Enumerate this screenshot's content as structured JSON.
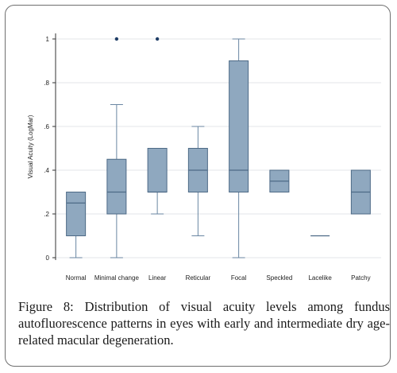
{
  "caption": {
    "label": "Figure 8:",
    "text": "Distribution of visual acuity levels among fundus autofluorescence patterns in eyes with early and intermediate dry age-related macular degeneration."
  },
  "colors": {
    "box_fill": "#8fa8bf",
    "box_stroke": "#4d6a86",
    "whisker": "#6a86a2",
    "outlier": "#1f3d66",
    "gridline": "#e3e6ea",
    "axis": "#333333"
  },
  "chart_data": {
    "type": "box",
    "title": "",
    "xlabel": "",
    "ylabel": "Visual Acuity (LogMar)",
    "ylim": [
      0,
      1
    ],
    "yticks": [
      0,
      0.2,
      0.4,
      0.6,
      0.8,
      1
    ],
    "ytick_labels": [
      "0",
      ".2",
      ".4",
      ".6",
      ".8",
      "1"
    ],
    "grid": true,
    "categories": [
      "Normal",
      "Minimal change",
      "Linear",
      "Reticular",
      "Focal",
      "Speckled",
      "Lacelike",
      "Patchy"
    ],
    "boxes": [
      {
        "category": "Normal",
        "min": 0,
        "q1": 0.1,
        "median": 0.25,
        "q3": 0.3,
        "max": 0.3,
        "outliers": []
      },
      {
        "category": "Minimal change",
        "min": 0,
        "q1": 0.2,
        "median": 0.3,
        "q3": 0.45,
        "max": 0.7,
        "outliers": [
          1.0
        ]
      },
      {
        "category": "Linear",
        "min": 0.2,
        "q1": 0.3,
        "median": 0.3,
        "q3": 0.5,
        "max": 0.5,
        "outliers": [
          1.0
        ]
      },
      {
        "category": "Reticular",
        "min": 0.1,
        "q1": 0.3,
        "median": 0.4,
        "q3": 0.5,
        "max": 0.6,
        "outliers": []
      },
      {
        "category": "Focal",
        "min": 0,
        "q1": 0.3,
        "median": 0.4,
        "q3": 0.9,
        "max": 1.0,
        "outliers": []
      },
      {
        "category": "Speckled",
        "min": 0.3,
        "q1": 0.3,
        "median": 0.35,
        "q3": 0.4,
        "max": 0.4,
        "outliers": []
      },
      {
        "category": "Lacelike",
        "min": 0.1,
        "q1": 0.1,
        "median": 0.1,
        "q3": 0.1,
        "max": 0.1,
        "outliers": []
      },
      {
        "category": "Patchy",
        "min": 0.2,
        "q1": 0.2,
        "median": 0.3,
        "q3": 0.4,
        "max": 0.4,
        "outliers": []
      }
    ]
  }
}
